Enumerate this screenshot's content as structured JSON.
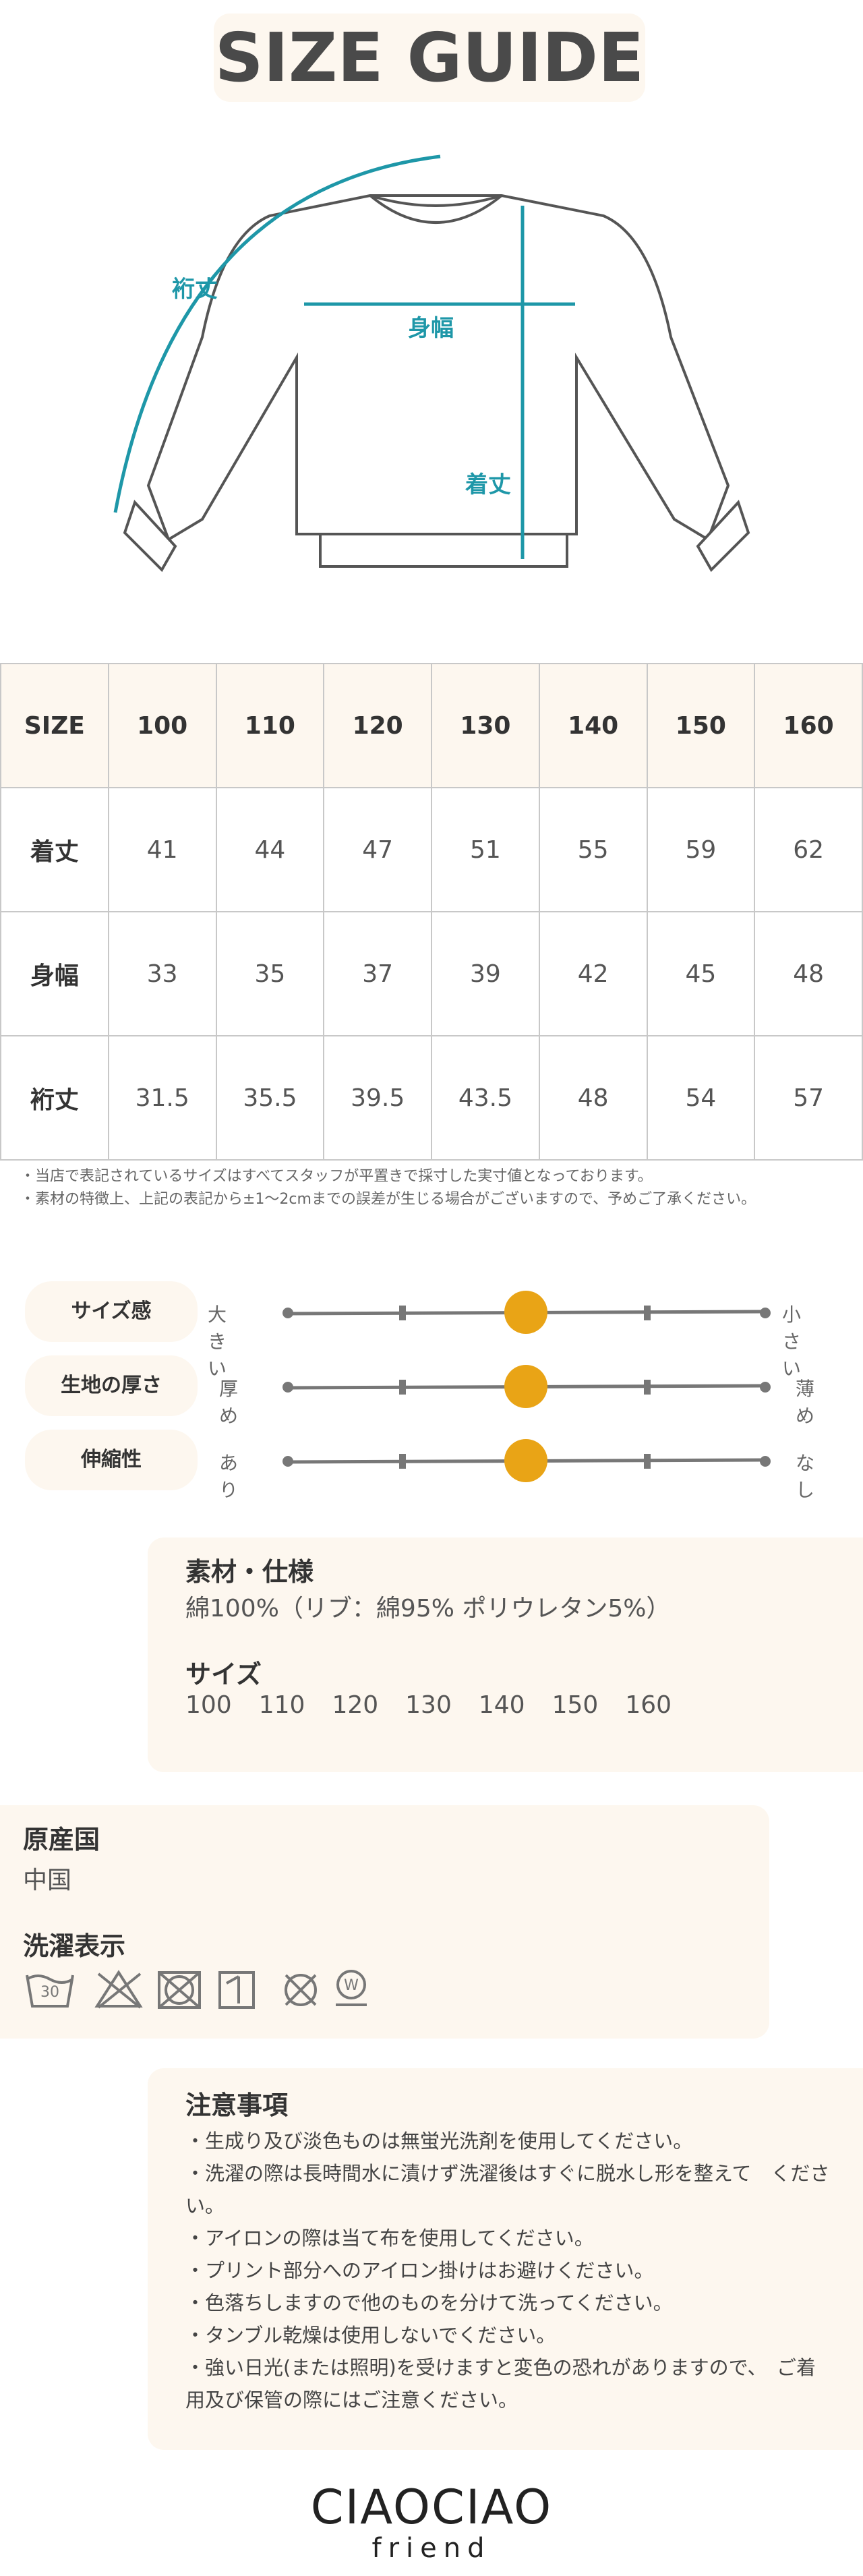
{
  "header": {
    "title": "SIZE GUIDE"
  },
  "illustration": {
    "labels": [
      "裄丈",
      "身幅",
      "着丈"
    ]
  },
  "table": {
    "header": [
      "SIZE",
      "100",
      "110",
      "120",
      "130",
      "140",
      "150",
      "160"
    ],
    "rows": [
      [
        "着丈",
        41,
        44,
        47,
        51,
        55,
        59,
        62
      ],
      [
        "身幅",
        33,
        35,
        37,
        39,
        42,
        45,
        48
      ],
      [
        "裄丈",
        31.5,
        35.5,
        39.5,
        43.5,
        48,
        54,
        57
      ]
    ]
  },
  "notes": [
    "・当店で表記されているサイズはすべてスタッフが平置きで採寸した実寸値となっております。",
    "・素材の特徴上、上記の表記から±1〜2cmまでの誤差が生じる場合がございますので、予めご了承ください。"
  ],
  "sliders": [
    {
      "label": "サイズ感",
      "left": "大きい",
      "right": "小さい"
    },
    {
      "label": "生地の厚さ",
      "left": "厚め",
      "right": "薄め"
    },
    {
      "label": "伸縮性",
      "left": "あり",
      "right": "なし"
    }
  ],
  "material": {
    "title": "素材・仕様",
    "text": "綿100%（リブ：綿95% ポリウレタン5%）",
    "size_title": "サイズ",
    "sizes": [
      "100",
      "110",
      "120",
      "130",
      "140",
      "150",
      "160"
    ]
  },
  "origin": {
    "title": "原産国",
    "text": "中国",
    "care_title": "洗濯表示",
    "wash_temp": "30"
  },
  "notice": {
    "title": "注意事項",
    "items": [
      "・生成り及び淡色ものは無蛍光洗剤を使用してください。",
      "・洗濯の際は長時間水に漬けず洗濯後はすぐに脱水し形を整えて　ください。",
      "・アイロンの際は当て布を使用してください。",
      "・プリント部分へのアイロン掛けはお避けください。",
      "・色落ちしますので他のものを分けて洗ってください。",
      "・タンブル乾燥は使用しないでください。",
      "・強い日光(または照明)を受けますと変色の恐れがありますので、　ご着用及び保管の際にはご注意ください。"
    ]
  },
  "logo": {
    "brand": "CIAOCIAO",
    "sub": "friend"
  }
}
